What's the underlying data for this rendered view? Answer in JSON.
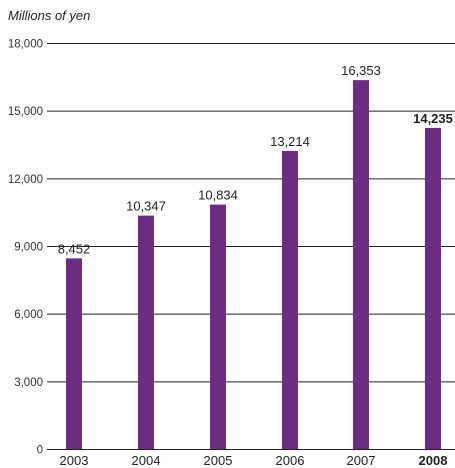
{
  "chart_data": {
    "type": "bar",
    "unit_label": "Millions of yen",
    "categories": [
      "2003",
      "2004",
      "2005",
      "2006",
      "2007",
      "2008"
    ],
    "values": [
      8452,
      10347,
      10834,
      13214,
      16353,
      14235
    ],
    "value_labels": [
      "8,452",
      "10,347",
      "10,834",
      "13,214",
      "16,353",
      "14,235"
    ],
    "highlight_category": "2008",
    "y_ticks": [
      0,
      3000,
      6000,
      9000,
      12000,
      15000,
      18000
    ],
    "y_tick_labels": [
      "0",
      "3,000",
      "6,000",
      "9,000",
      "12,000",
      "15,000",
      "18,000"
    ],
    "ylim": [
      0,
      18000
    ],
    "grid": true,
    "bar_color": "#6b2c82",
    "grid_color": "#222222"
  }
}
